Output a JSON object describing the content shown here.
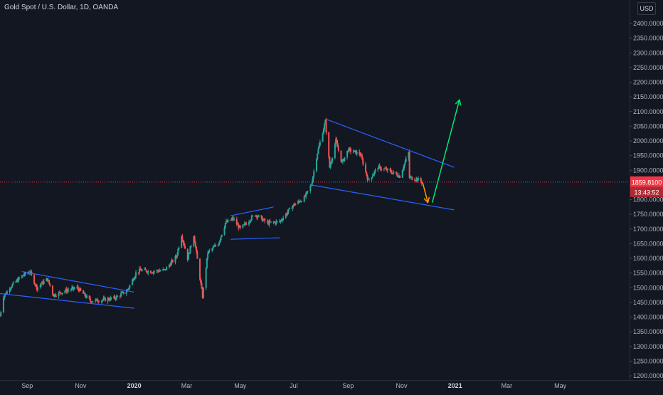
{
  "title": "Gold Spot / U.S. Dollar, 1D, OANDA",
  "currency": "USD",
  "colors": {
    "background": "#131722",
    "up": "#26a69a",
    "down": "#ef5350",
    "trendline": "#2962ff",
    "arrow_up": "#00e676",
    "arrow_down": "#ff9800",
    "price_line": "#f23645",
    "axis_text": "#b2b5be"
  },
  "chart_data": {
    "type": "candlestick",
    "x_ticks": [
      "Sep",
      "Nov",
      "2020",
      "Mar",
      "May",
      "Jul",
      "Sep",
      "Nov",
      "2021",
      "Mar",
      "May"
    ],
    "y_ticks": [
      "1200.0000",
      "1250.0000",
      "1300.0000",
      "1350.0000",
      "1400.0000",
      "1450.0000",
      "1500.0000",
      "1550.0000",
      "1600.0000",
      "1650.0000",
      "1700.0000",
      "1750.0000",
      "1800.0000",
      "1850.0000",
      "1900.0000",
      "1950.0000",
      "2000.0000",
      "2050.0000",
      "2100.0000",
      "2150.0000",
      "2200.0000",
      "2250.0000",
      "2300.0000",
      "2350.0000",
      "2400.0000"
    ],
    "ylim": [
      1200,
      2400
    ],
    "current_price": "1859.8100",
    "countdown": "13:43:52",
    "price_path": [
      [
        "2019-08-01",
        1405
      ],
      [
        "2019-08-05",
        1470
      ],
      [
        "2019-08-12",
        1500
      ],
      [
        "2019-08-26",
        1540
      ],
      [
        "2019-09-04",
        1555
      ],
      [
        "2019-09-12",
        1500
      ],
      [
        "2019-09-24",
        1530
      ],
      [
        "2019-10-01",
        1475
      ],
      [
        "2019-10-15",
        1490
      ],
      [
        "2019-10-28",
        1500
      ],
      [
        "2019-11-12",
        1455
      ],
      [
        "2019-11-25",
        1458
      ],
      [
        "2019-12-10",
        1465
      ],
      [
        "2019-12-24",
        1490
      ],
      [
        "2020-01-03",
        1550
      ],
      [
        "2020-01-08",
        1560
      ],
      [
        "2020-01-20",
        1555
      ],
      [
        "2020-02-05",
        1560
      ],
      [
        "2020-02-18",
        1605
      ],
      [
        "2020-02-24",
        1680
      ],
      [
        "2020-03-02",
        1600
      ],
      [
        "2020-03-09",
        1680
      ],
      [
        "2020-03-19",
        1470
      ],
      [
        "2020-03-25",
        1620
      ],
      [
        "2020-04-06",
        1650
      ],
      [
        "2020-04-14",
        1720
      ],
      [
        "2020-04-23",
        1735
      ],
      [
        "2020-05-01",
        1700
      ],
      [
        "2020-05-18",
        1750
      ],
      [
        "2020-06-01",
        1720
      ],
      [
        "2020-06-15",
        1725
      ],
      [
        "2020-06-30",
        1780
      ],
      [
        "2020-07-13",
        1805
      ],
      [
        "2020-07-21",
        1850
      ],
      [
        "2020-07-28",
        1960
      ],
      [
        "2020-08-06",
        2065
      ],
      [
        "2020-08-11",
        1910
      ],
      [
        "2020-08-18",
        2000
      ],
      [
        "2020-08-25",
        1925
      ],
      [
        "2020-09-01",
        1970
      ],
      [
        "2020-09-15",
        1955
      ],
      [
        "2020-09-24",
        1865
      ],
      [
        "2020-10-05",
        1910
      ],
      [
        "2020-10-16",
        1900
      ],
      [
        "2020-10-30",
        1880
      ],
      [
        "2020-11-09",
        1960
      ],
      [
        "2020-11-10",
        1875
      ],
      [
        "2020-11-19",
        1870
      ],
      [
        "2020-11-24",
        1859.81
      ]
    ],
    "annotations": {
      "trendlines": [
        [
          [
            "2019-08-26",
            1555
          ],
          [
            "2020-01-01",
            1485
          ]
        ],
        [
          [
            "2019-08-01",
            1480
          ],
          [
            "2020-01-01",
            1430
          ]
        ],
        [
          [
            "2020-04-20",
            1745
          ],
          [
            "2020-06-08",
            1775
          ]
        ],
        [
          [
            "2020-04-20",
            1665
          ],
          [
            "2020-06-15",
            1670
          ]
        ],
        [
          [
            "2020-08-06",
            2075
          ],
          [
            "2020-12-31",
            1910
          ]
        ],
        [
          [
            "2020-07-21",
            1850
          ],
          [
            "2020-12-31",
            1765
          ]
        ]
      ],
      "arrow_down": [
        [
          "2020-11-25",
          1858
        ],
        [
          "2020-12-01",
          1790
        ]
      ],
      "arrow_up": [
        [
          "2020-12-06",
          1790
        ],
        [
          "2021-01-06",
          2140
        ]
      ]
    }
  }
}
